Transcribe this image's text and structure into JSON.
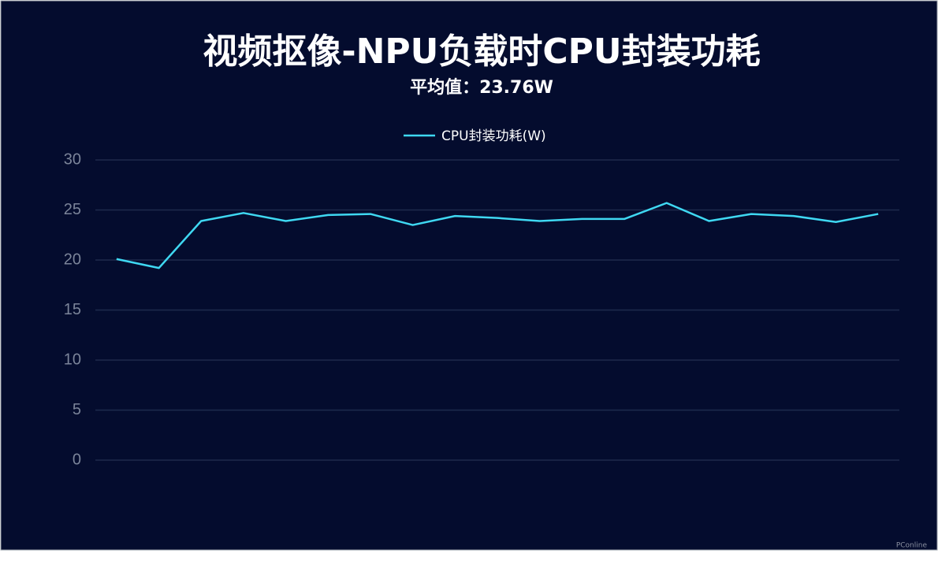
{
  "chart_data": {
    "type": "line",
    "title": "视频抠像-NPU负载时CPU封装功耗",
    "subtitle": "平均值：23.76W",
    "categories": [
      null,
      null,
      null,
      null,
      null,
      null,
      null,
      null,
      null,
      null,
      null,
      null,
      null,
      null,
      null,
      null,
      null,
      null,
      null
    ],
    "series": [
      {
        "name": "CPU封装功耗(W)",
        "color": "#3fd8f2",
        "values": [
          20.1,
          19.2,
          23.9,
          24.7,
          23.9,
          24.5,
          24.6,
          23.5,
          24.4,
          24.2,
          23.9,
          24.1,
          24.1,
          25.7,
          23.9,
          24.6,
          24.4,
          23.8,
          24.6
        ]
      }
    ],
    "ylim": [
      0,
      30
    ],
    "yticks": [
      0,
      5,
      10,
      15,
      20,
      25,
      30
    ],
    "grid": true,
    "legend": "top",
    "watermark": "PConline"
  }
}
